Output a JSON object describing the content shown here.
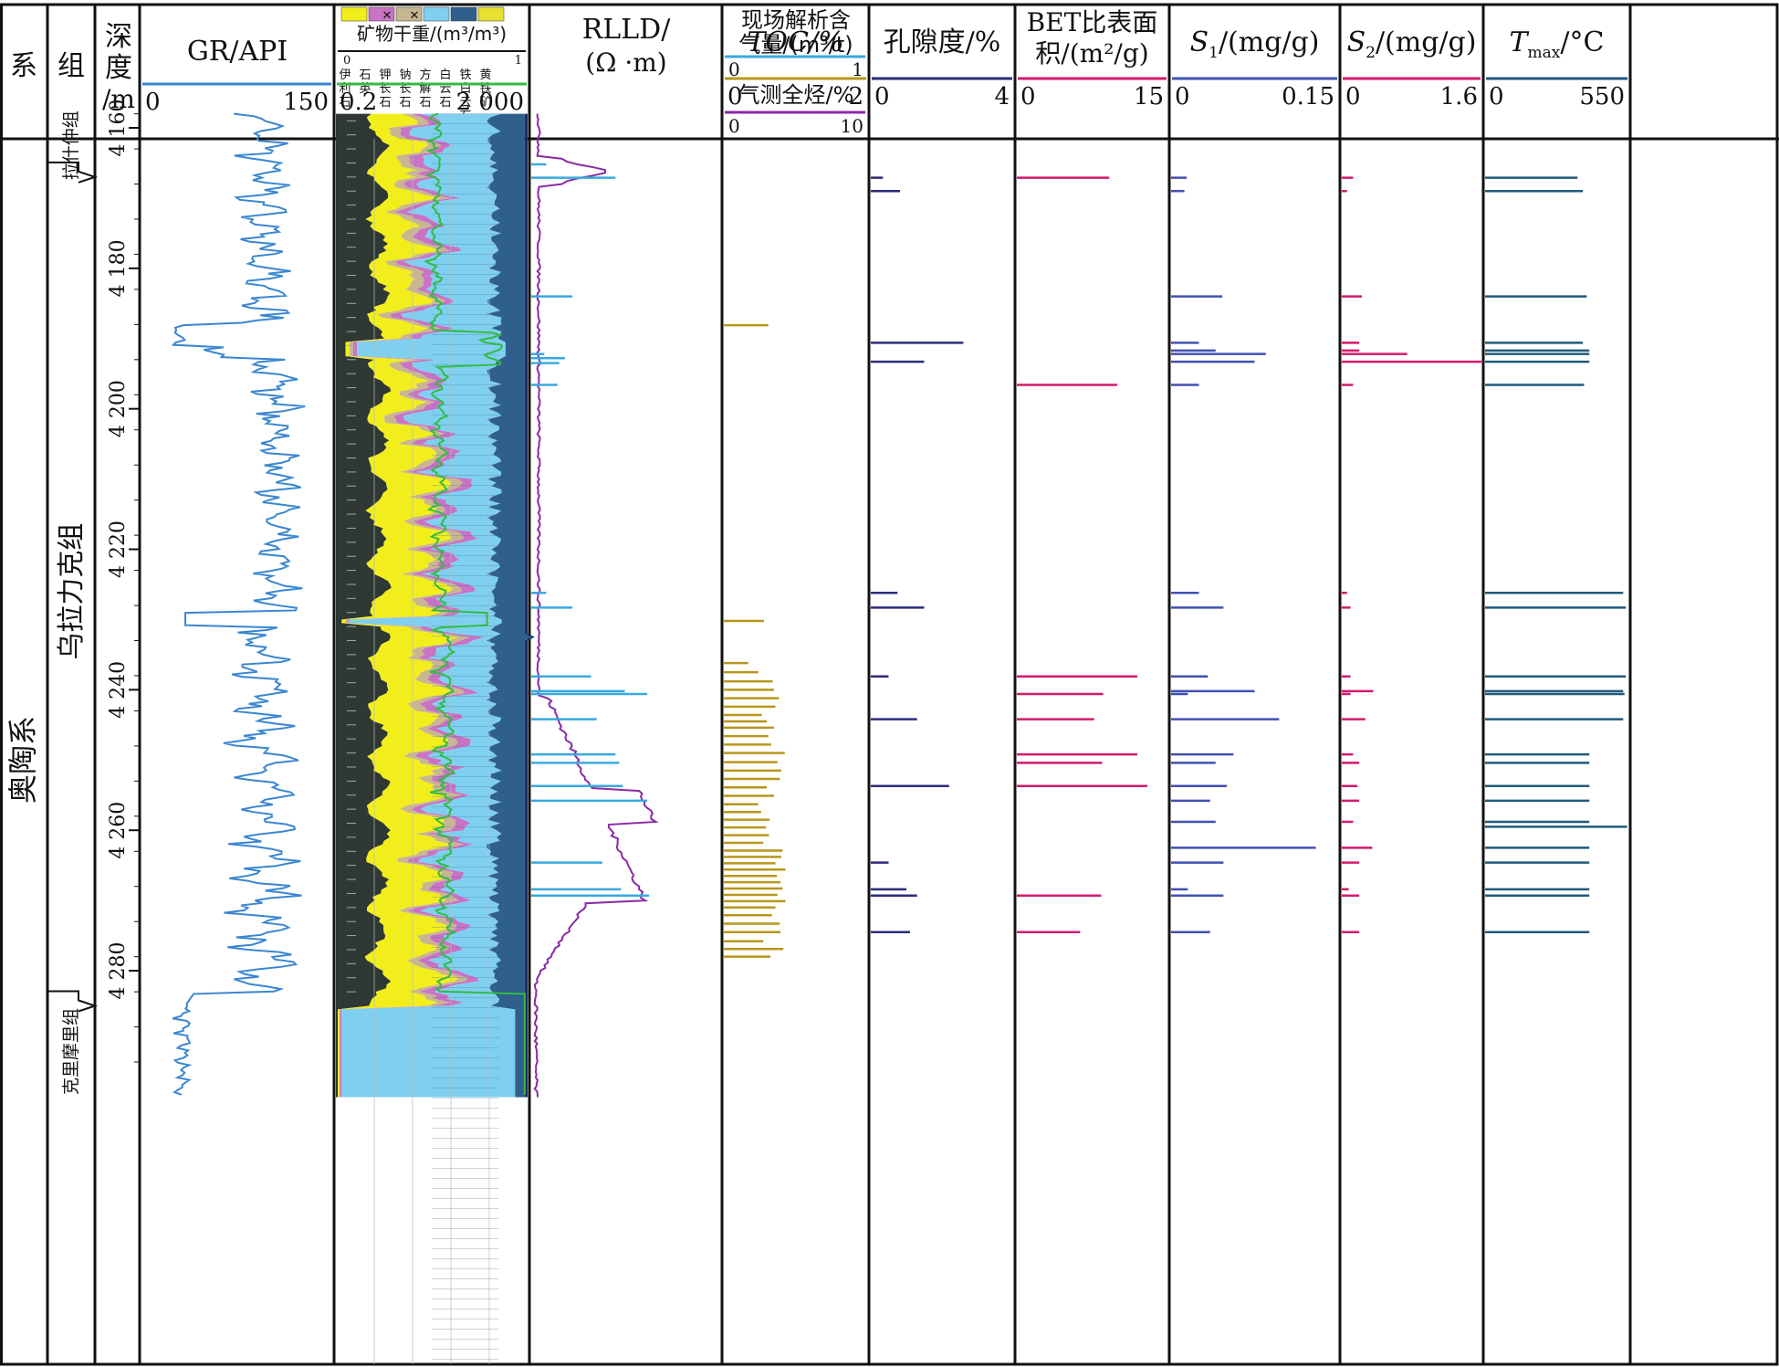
{
  "chart_data": {
    "type": "line",
    "depth_ticks": [
      "4 160",
      "4 180",
      "4 200",
      "4 220",
      "4 240",
      "4 260",
      "4 280"
    ],
    "depth_range": [
      4158,
      4298
    ],
    "strat": {
      "system_header": "系",
      "group_header": "组",
      "depth_header": "深度/m",
      "system": "奥陶系",
      "formations": [
        {
          "name": "拉什仲组",
          "top": 4158,
          "base": 4167
        },
        {
          "name": "乌拉力克组",
          "top": 4167,
          "base": 4285
        },
        {
          "name": "克里摩里组",
          "top": 4285,
          "base": 4298
        }
      ]
    },
    "tracks": {
      "gr": {
        "title": "GR/API",
        "min": "0",
        "max": "150",
        "color": "#3a86d0"
      },
      "mineral": {
        "title": "矿物干重/(m³/m³)",
        "min": "0",
        "max": "1",
        "legend": [
          "伊利石",
          "石英",
          "钾长石",
          "钠长石",
          "方解石",
          "白云石",
          "铁白云石",
          "黄铁矿"
        ],
        "legend_marks": [
          "✕",
          "✕"
        ],
        "colors": {
          "illite": "#2f3833",
          "quartz": "#f2ee1c",
          "kfeldspar": "#c8b691",
          "albite": "#c873c4",
          "calcite": "#7fd0f0",
          "dolomite": "#2f5f8c",
          "ankerite": "#6b8db3",
          "pyrite": "#e8e030"
        }
      },
      "rlld": {
        "title": "RLLD/(Ω·m)",
        "title_line1": "RLLD/",
        "title_line2": "(Ω ·m)",
        "min": "0.2",
        "max": "2 000",
        "color": "#33bb44"
      },
      "gas": {
        "title": "现场解析含气量/(m³/t)",
        "title_line1": "现场解析含",
        "title_line2": "气量/(m³/t)",
        "min": "0",
        "max": "1",
        "color": "#39a9dd",
        "title2": "气测全烃/%",
        "min2": "0",
        "max2": "10",
        "color2": "#8a2aa3",
        "gas_content": [
          [
            4165.2,
            0.08
          ],
          [
            4167.1,
            0.45
          ],
          [
            4184,
            0.22
          ],
          [
            4192.2,
            0.07
          ],
          [
            4192.8,
            0.18
          ],
          [
            4193.5,
            0.15
          ],
          [
            4196.6,
            0.14
          ],
          [
            4226.2,
            0.08
          ],
          [
            4228.3,
            0.22
          ],
          [
            4238.1,
            0.32
          ],
          [
            4240.2,
            0.5
          ],
          [
            4240.6,
            0.62
          ],
          [
            4244.2,
            0.35
          ],
          [
            4249.2,
            0.45
          ],
          [
            4250.4,
            0.47
          ],
          [
            4253.7,
            0.49
          ],
          [
            4255.8,
            0.62
          ],
          [
            4264.6,
            0.38
          ],
          [
            4268.4,
            0.48
          ],
          [
            4269.3,
            0.63
          ]
        ]
      },
      "toc": {
        "title": "TOC/%",
        "min": "0",
        "max": "2",
        "color": "#b8961e",
        "values": [
          [
            4188.1,
            0.62
          ],
          [
            4230.2,
            0.56
          ],
          [
            4236.2,
            0.34
          ],
          [
            4237.5,
            0.48
          ],
          [
            4238.8,
            0.68
          ],
          [
            4240,
            0.7
          ],
          [
            4241.2,
            0.77
          ],
          [
            4242.4,
            0.72
          ],
          [
            4243.6,
            0.53
          ],
          [
            4244.5,
            0.6
          ],
          [
            4245.4,
            0.7
          ],
          [
            4246.6,
            0.62
          ],
          [
            4247.8,
            0.66
          ],
          [
            4249.0,
            0.85
          ],
          [
            4250.3,
            0.75
          ],
          [
            4251.5,
            0.8
          ],
          [
            4252.7,
            0.78
          ],
          [
            4253.9,
            0.6
          ],
          [
            4255.1,
            0.7
          ],
          [
            4256.3,
            0.48
          ],
          [
            4257.4,
            0.52
          ],
          [
            4258.5,
            0.64
          ],
          [
            4259.6,
            0.59
          ],
          [
            4260.7,
            0.63
          ],
          [
            4261.8,
            0.55
          ],
          [
            4262.9,
            0.82
          ],
          [
            4263.8,
            0.8
          ],
          [
            4264.7,
            0.72
          ],
          [
            4265.6,
            0.86
          ],
          [
            4266.5,
            0.74
          ],
          [
            4267.4,
            0.79
          ],
          [
            4268.3,
            0.82
          ],
          [
            4269.2,
            0.75
          ],
          [
            4270.1,
            0.86
          ],
          [
            4271.0,
            0.72
          ],
          [
            4272.1,
            0.67
          ],
          [
            4273.3,
            0.78
          ],
          [
            4274.5,
            0.79
          ],
          [
            4275.8,
            0.55
          ],
          [
            4276.9,
            0.83
          ],
          [
            4278.0,
            0.65
          ]
        ]
      },
      "porosity": {
        "title": "孔隙度/%",
        "min": "0",
        "max": "4",
        "color": "#2a2c7a",
        "values": [
          [
            4167.1,
            0.34
          ],
          [
            4169,
            0.82
          ],
          [
            4190.6,
            2.6
          ],
          [
            4193.3,
            1.5
          ],
          [
            4226.2,
            0.75
          ],
          [
            4228.3,
            1.5
          ],
          [
            4238.1,
            0.5
          ],
          [
            4244.2,
            1.3
          ],
          [
            4253.7,
            2.2
          ],
          [
            4264.6,
            0.5
          ],
          [
            4268.4,
            1.0
          ],
          [
            4269.3,
            1.3
          ],
          [
            4274.5,
            1.1
          ]
        ]
      },
      "bet": {
        "title": "BET比表面积/(m²/g)",
        "title_line1": "BET比表面",
        "title_line2": "积/(m²/g)",
        "min": "0",
        "max": "15",
        "color": "#d21a6e",
        "values": [
          [
            4167.1,
            9.2
          ],
          [
            4196.6,
            10
          ],
          [
            4238.1,
            12
          ],
          [
            4240.6,
            8.6
          ],
          [
            4244.2,
            7.7
          ],
          [
            4249.2,
            12
          ],
          [
            4250.4,
            8.5
          ],
          [
            4253.7,
            13
          ],
          [
            4269.3,
            8.4
          ],
          [
            4274.5,
            6.3
          ]
        ]
      },
      "s1": {
        "title": "S₁/(mg/g)",
        "label": "S",
        "sub": "1",
        "unit": "/(mg/g)",
        "min": "0",
        "max": "0.15",
        "color": "#4150b0",
        "values": [
          [
            4167.1,
            0.014
          ],
          [
            4169,
            0.012
          ],
          [
            4184,
            0.046
          ],
          [
            4190.6,
            0.025
          ],
          [
            4191.7,
            0.04
          ],
          [
            4192.2,
            0.085
          ],
          [
            4193.3,
            0.075
          ],
          [
            4196.6,
            0.025
          ],
          [
            4226.2,
            0.025
          ],
          [
            4228.3,
            0.047
          ],
          [
            4238.1,
            0.033
          ],
          [
            4240.2,
            0.075
          ],
          [
            4240.6,
            0.015
          ],
          [
            4244.2,
            0.097
          ],
          [
            4249.2,
            0.056
          ],
          [
            4250.4,
            0.04
          ],
          [
            4253.7,
            0.05
          ],
          [
            4255.8,
            0.035
          ],
          [
            4258.8,
            0.04
          ],
          [
            4262.5,
            0.13
          ],
          [
            4264.6,
            0.047
          ],
          [
            4268.4,
            0.015
          ],
          [
            4269.3,
            0.047
          ],
          [
            4274.5,
            0.035
          ]
        ]
      },
      "s2": {
        "title": "S₂/(mg/g)",
        "label": "S",
        "sub": "2",
        "unit": "/(mg/g)",
        "min": "0",
        "max": "1.6",
        "color": "#d21a6e",
        "values": [
          [
            4167.1,
            0.13
          ],
          [
            4169,
            0.06
          ],
          [
            4184,
            0.23
          ],
          [
            4190.6,
            0.2
          ],
          [
            4191.7,
            0.2
          ],
          [
            4192.2,
            0.75
          ],
          [
            4193.3,
            1.6
          ],
          [
            4196.6,
            0.13
          ],
          [
            4226.2,
            0.06
          ],
          [
            4228.3,
            0.1
          ],
          [
            4238.1,
            0.1
          ],
          [
            4240.2,
            0.36
          ],
          [
            4240.6,
            0.1
          ],
          [
            4244.2,
            0.27
          ],
          [
            4249.2,
            0.13
          ],
          [
            4250.4,
            0.2
          ],
          [
            4253.7,
            0.18
          ],
          [
            4255.8,
            0.2
          ],
          [
            4258.8,
            0.13
          ],
          [
            4262.5,
            0.35
          ],
          [
            4264.6,
            0.2
          ],
          [
            4268.4,
            0.08
          ],
          [
            4269.3,
            0.2
          ],
          [
            4274.5,
            0.2
          ]
        ]
      },
      "tmax": {
        "title": "Tmax/°C",
        "label": "T",
        "sub": "max",
        "unit": "/°C",
        "min": "0",
        "max": "550",
        "color": "#1f5a7c",
        "values": [
          [
            4167.1,
            355
          ],
          [
            4169,
            375
          ],
          [
            4184,
            390
          ],
          [
            4190.6,
            375
          ],
          [
            4191.7,
            400
          ],
          [
            4192.2,
            400
          ],
          [
            4193.3,
            400
          ],
          [
            4196.6,
            380
          ],
          [
            4226.2,
            530
          ],
          [
            4228.3,
            540
          ],
          [
            4238.1,
            540
          ],
          [
            4240.2,
            530
          ],
          [
            4240.6,
            535
          ],
          [
            4244.2,
            530
          ],
          [
            4249.2,
            400
          ],
          [
            4250.4,
            400
          ],
          [
            4253.7,
            400
          ],
          [
            4255.8,
            400
          ],
          [
            4258.8,
            400
          ],
          [
            4259.5,
            545
          ],
          [
            4262.5,
            400
          ],
          [
            4264.6,
            400
          ],
          [
            4268.4,
            400
          ],
          [
            4269.3,
            400
          ],
          [
            4274.5,
            400
          ]
        ]
      }
    }
  }
}
